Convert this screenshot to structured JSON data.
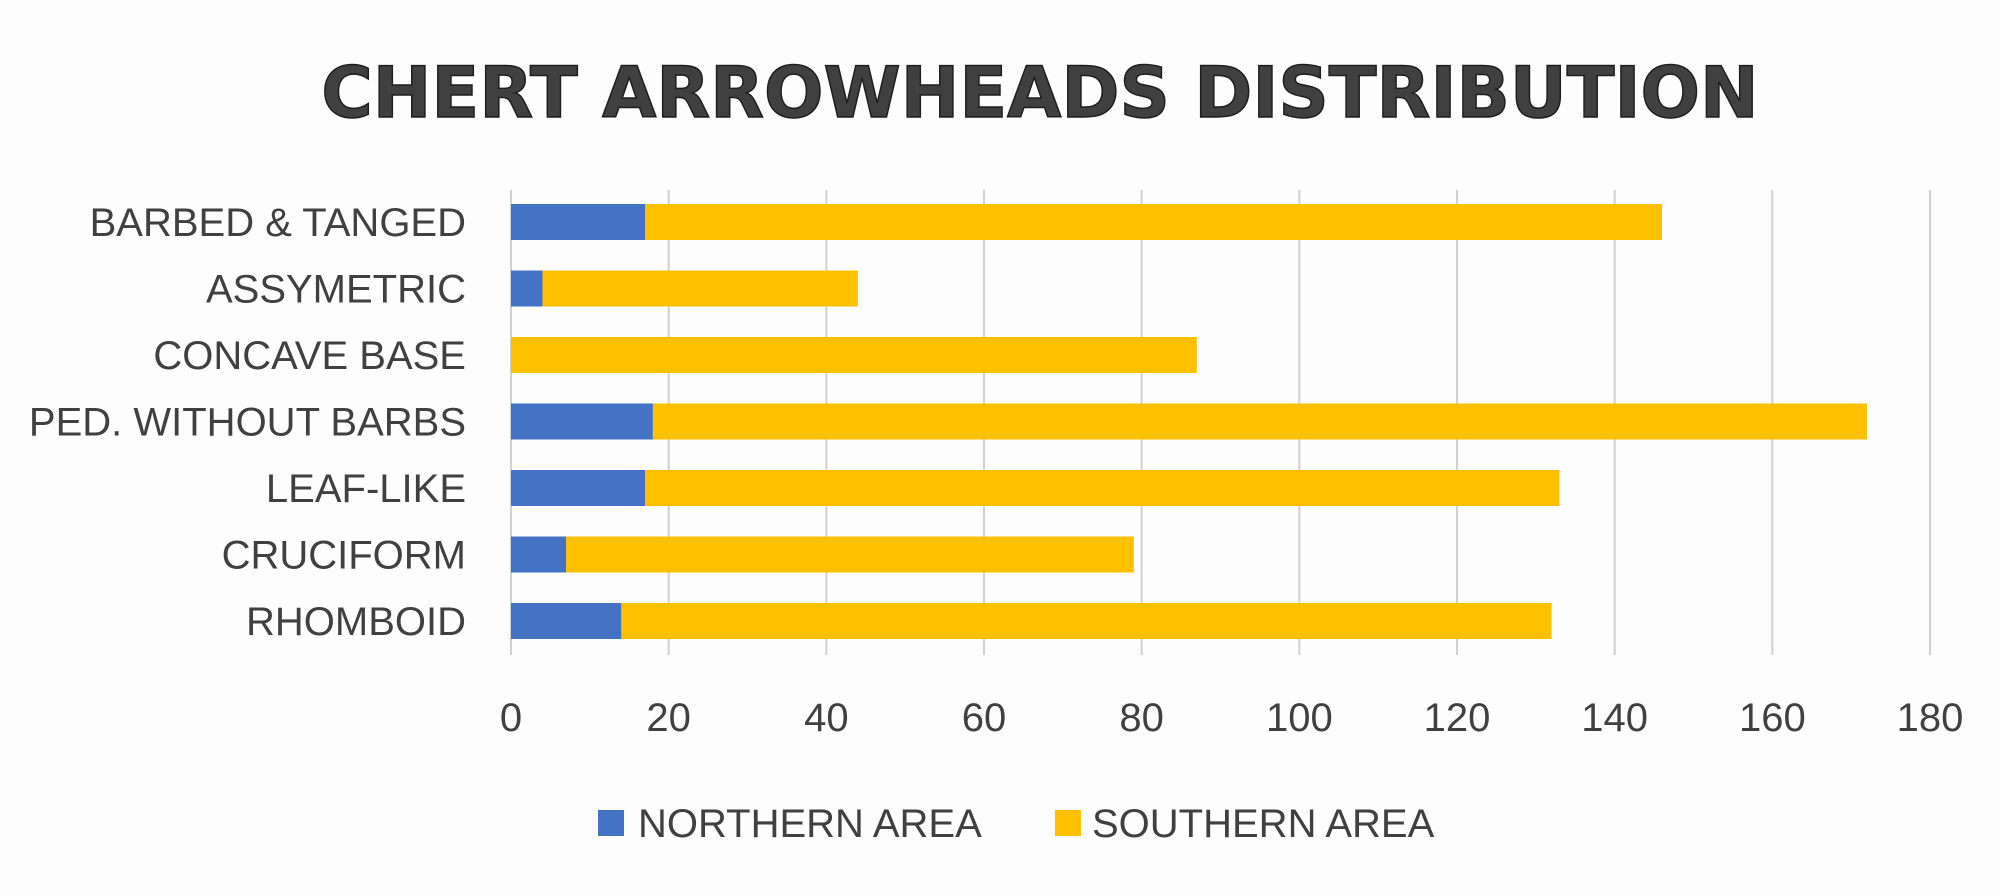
{
  "chart_data": {
    "type": "bar",
    "orientation": "horizontal",
    "stacked": true,
    "title": "CHERT ARROWHEADS DISTRIBUTION",
    "categories": [
      "BARBED & TANGED",
      "ASSYMETRIC",
      "CONCAVE BASE",
      "PED. WITHOUT BARBS",
      "LEAF-LIKE",
      "CRUCIFORM",
      "RHOMBOID"
    ],
    "series": [
      {
        "name": "NORTHERN AREA",
        "color": "#4472c4",
        "values": [
          17,
          4,
          0,
          18,
          17,
          7,
          14
        ]
      },
      {
        "name": "SOUTHERN AREA",
        "color": "#ffc000",
        "values": [
          129,
          40,
          87,
          154,
          116,
          72,
          118
        ]
      }
    ],
    "xlim": [
      0,
      180
    ],
    "xticks": [
      "0",
      "20",
      "40",
      "60",
      "80",
      "100",
      "120",
      "140",
      "160",
      "180"
    ],
    "grid": true,
    "legend_position": "bottom"
  }
}
